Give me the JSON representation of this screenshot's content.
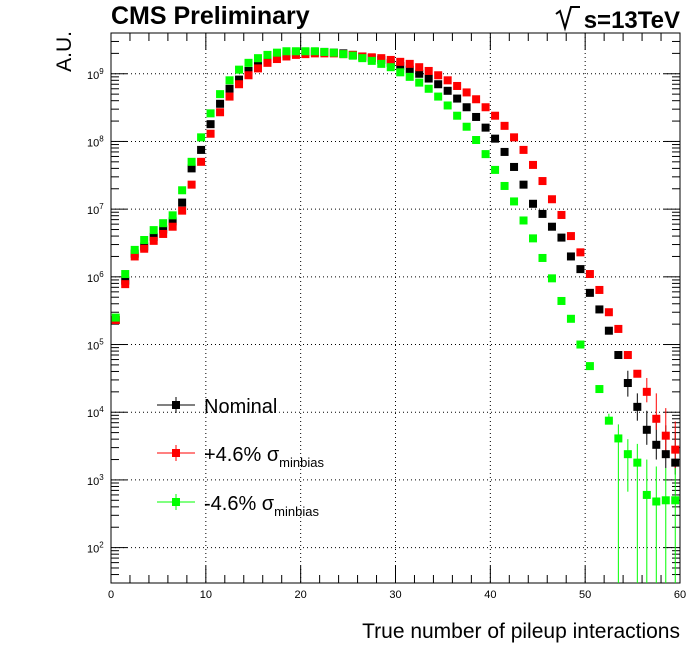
{
  "chart_data": {
    "type": "scatter",
    "title": "",
    "header_left": "CMS Preliminary",
    "header_right": "s=13TeV",
    "xlabel": "True number of pileup interactions",
    "ylabel": "A.U.",
    "xlim": [
      0,
      60
    ],
    "ylim": [
      30,
      4000000000
    ],
    "yscale": "log",
    "grid": true,
    "x_ticks": [
      0,
      10,
      20,
      30,
      40,
      50,
      60
    ],
    "y_tick_values": [
      100,
      1000,
      10000,
      100000,
      1000000,
      10000000,
      100000000,
      1000000000
    ],
    "y_tick_labels": [
      {
        "base": "10",
        "exp": "2"
      },
      {
        "base": "10",
        "exp": "3"
      },
      {
        "base": "10",
        "exp": "4"
      },
      {
        "base": "10",
        "exp": "5"
      },
      {
        "base": "10",
        "exp": "6"
      },
      {
        "base": "10",
        "exp": "7"
      },
      {
        "base": "10",
        "exp": "8"
      },
      {
        "base": "10",
        "exp": "9"
      }
    ],
    "legend_position": "bottom-left",
    "x": [
      0.5,
      1.5,
      2.5,
      3.5,
      4.5,
      5.5,
      6.5,
      7.5,
      8.5,
      9.5,
      10.5,
      11.5,
      12.5,
      13.5,
      14.5,
      15.5,
      16.5,
      17.5,
      18.5,
      19.5,
      20.5,
      21.5,
      22.5,
      23.5,
      24.5,
      25.5,
      26.5,
      27.5,
      28.5,
      29.5,
      30.5,
      31.5,
      32.5,
      33.5,
      34.5,
      35.5,
      36.5,
      37.5,
      38.5,
      39.5,
      40.5,
      41.5,
      42.5,
      43.5,
      44.5,
      45.5,
      46.5,
      47.5,
      48.5,
      49.5,
      50.5,
      51.5,
      52.5,
      53.5,
      54.5,
      55.5,
      56.5,
      57.5,
      58.5,
      59.5
    ],
    "series": [
      {
        "name": "Nominal",
        "color": "#000000",
        "values": [
          230000,
          880000,
          2200000,
          2800000,
          3900000,
          5000000,
          6600000,
          12500000,
          40000000,
          75000000,
          180000000,
          360000000,
          600000000,
          820000000,
          1100000000,
          1300000000,
          1600000000,
          1800000000,
          1950000000,
          2050000000,
          2100000000,
          2100000000,
          2100000000,
          2050000000,
          2000000000,
          1900000000,
          1800000000,
          1700000000,
          1600000000,
          1450000000,
          1300000000,
          1150000000,
          1000000000,
          850000000,
          700000000,
          560000000,
          430000000,
          320000000,
          230000000,
          160000000,
          110000000,
          70000000,
          42000000,
          23000000,
          12000000,
          8500000,
          5500000,
          3800000,
          2000000,
          1300000,
          580000,
          330000,
          160000,
          70000,
          27000,
          12000,
          5500,
          3300,
          2400,
          1800
        ],
        "err_lo": [
          null,
          null,
          null,
          null,
          null,
          null,
          null,
          null,
          null,
          null,
          null,
          null,
          null,
          null,
          null,
          null,
          null,
          null,
          null,
          null,
          null,
          null,
          null,
          null,
          null,
          null,
          null,
          null,
          null,
          null,
          null,
          null,
          null,
          null,
          null,
          null,
          null,
          null,
          null,
          null,
          null,
          null,
          null,
          null,
          null,
          null,
          null,
          null,
          null,
          null,
          null,
          null,
          null,
          null,
          10000,
          4500,
          2200,
          1300,
          900,
          600
        ],
        "err_hi": [
          null,
          null,
          null,
          null,
          null,
          null,
          null,
          null,
          null,
          null,
          null,
          null,
          null,
          null,
          null,
          null,
          null,
          null,
          null,
          null,
          null,
          null,
          null,
          null,
          null,
          null,
          null,
          null,
          null,
          null,
          null,
          null,
          null,
          null,
          null,
          null,
          null,
          null,
          null,
          null,
          null,
          null,
          null,
          null,
          null,
          null,
          null,
          null,
          null,
          null,
          null,
          null,
          null,
          null,
          14000,
          7000,
          5000,
          4500,
          4000,
          3200
        ]
      },
      {
        "name": "+4.6% σminbias",
        "color": "#ff0000",
        "values": [
          230000,
          780000,
          2000000,
          2600000,
          3400000,
          4300000,
          5500000,
          9500000,
          23000000,
          50000000,
          130000000,
          270000000,
          460000000,
          700000000,
          950000000,
          1200000000,
          1450000000,
          1650000000,
          1800000000,
          1900000000,
          1950000000,
          2000000000,
          2000000000,
          2000000000,
          1950000000,
          1900000000,
          1800000000,
          1750000000,
          1700000000,
          1600000000,
          1500000000,
          1400000000,
          1250000000,
          1100000000,
          950000000,
          800000000,
          660000000,
          530000000,
          420000000,
          320000000,
          240000000,
          170000000,
          115000000,
          75000000,
          45000000,
          26000000,
          14000000,
          8200000,
          4000000,
          2300000,
          1100000,
          640000,
          300000,
          170000,
          70000,
          37000,
          20000,
          8000,
          4500,
          2800
        ],
        "err_lo": [
          null,
          null,
          null,
          null,
          null,
          null,
          null,
          null,
          null,
          null,
          null,
          null,
          null,
          null,
          null,
          null,
          null,
          null,
          null,
          null,
          null,
          null,
          null,
          null,
          null,
          null,
          null,
          null,
          null,
          null,
          null,
          null,
          null,
          null,
          null,
          null,
          null,
          null,
          null,
          null,
          null,
          null,
          null,
          null,
          null,
          null,
          null,
          null,
          null,
          null,
          null,
          null,
          null,
          null,
          null,
          null,
          6000,
          2500,
          1800,
          1300
        ],
        "err_hi": [
          null,
          null,
          null,
          null,
          null,
          null,
          null,
          null,
          null,
          null,
          null,
          null,
          null,
          null,
          null,
          null,
          null,
          null,
          null,
          null,
          null,
          null,
          null,
          null,
          null,
          null,
          null,
          null,
          null,
          null,
          null,
          null,
          null,
          null,
          null,
          null,
          null,
          null,
          null,
          null,
          null,
          null,
          null,
          null,
          null,
          null,
          null,
          null,
          null,
          null,
          null,
          null,
          null,
          null,
          null,
          null,
          12000,
          11000,
          7000,
          4500
        ]
      },
      {
        "name": "-4.6% σminbias",
        "color": "#00ff00",
        "values": [
          250000,
          1100000,
          2500000,
          3500000,
          4900000,
          6200000,
          8100000,
          19000000,
          50000000,
          115000000,
          260000000,
          500000000,
          800000000,
          1150000000,
          1450000000,
          1700000000,
          1900000000,
          2050000000,
          2150000000,
          2150000000,
          2150000000,
          2150000000,
          2100000000,
          2050000000,
          1950000000,
          1850000000,
          1700000000,
          1550000000,
          1400000000,
          1250000000,
          1050000000,
          900000000,
          740000000,
          600000000,
          460000000,
          340000000,
          240000000,
          165000000,
          105000000,
          65000000,
          38000000,
          22000000,
          13000000,
          6800000,
          3700000,
          1900000,
          950000,
          440000,
          240000,
          100000,
          48000,
          22000,
          7500,
          4100,
          2400,
          1800,
          600,
          480,
          500,
          500
        ],
        "err_lo": [
          null,
          null,
          null,
          null,
          null,
          null,
          null,
          null,
          null,
          null,
          null,
          null,
          null,
          null,
          null,
          null,
          null,
          null,
          null,
          null,
          null,
          null,
          null,
          null,
          null,
          null,
          null,
          null,
          null,
          null,
          null,
          null,
          null,
          null,
          null,
          null,
          null,
          null,
          null,
          null,
          null,
          null,
          null,
          null,
          null,
          null,
          null,
          null,
          null,
          null,
          null,
          null,
          null,
          4200,
          1730,
          1790,
          570,
          470,
          490,
          490
        ],
        "err_hi": [
          null,
          null,
          null,
          null,
          null,
          null,
          null,
          null,
          null,
          null,
          null,
          null,
          null,
          null,
          null,
          null,
          null,
          null,
          null,
          null,
          null,
          null,
          null,
          null,
          null,
          null,
          null,
          null,
          null,
          null,
          null,
          null,
          null,
          null,
          null,
          null,
          null,
          null,
          null,
          null,
          null,
          null,
          null,
          null,
          null,
          null,
          null,
          null,
          null,
          null,
          null,
          null,
          2000,
          2500,
          1600,
          1600,
          1400,
          1100,
          1000,
          1000
        ]
      }
    ]
  }
}
